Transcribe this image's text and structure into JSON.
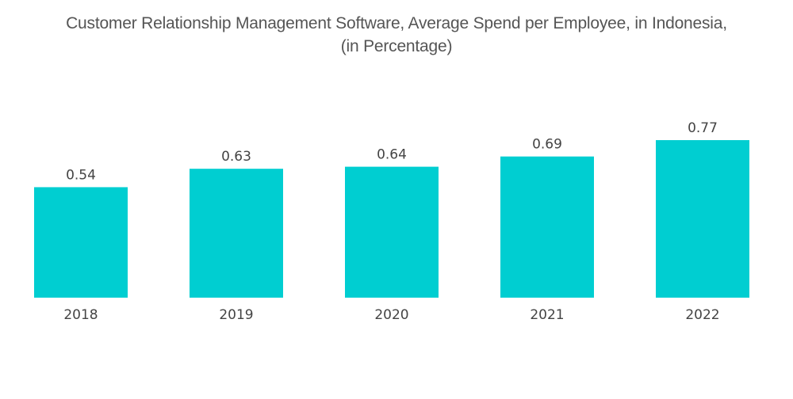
{
  "chart_data": {
    "type": "bar",
    "title": "Customer Relationship Management Software, Average Spend per Employee, in Indonesia,",
    "subtitle": "(in Percentage)",
    "categories": [
      "2018",
      "2019",
      "2020",
      "2021",
      "2022"
    ],
    "values": [
      0.54,
      0.63,
      0.64,
      0.69,
      0.77
    ],
    "value_labels": [
      "0.54",
      "0.63",
      "0.64",
      "0.69",
      "0.77"
    ],
    "xlabel": "",
    "ylabel": "",
    "ylim": [
      0,
      0.77
    ],
    "grid": false,
    "legend": "none",
    "bar_color": "#00CED1"
  }
}
